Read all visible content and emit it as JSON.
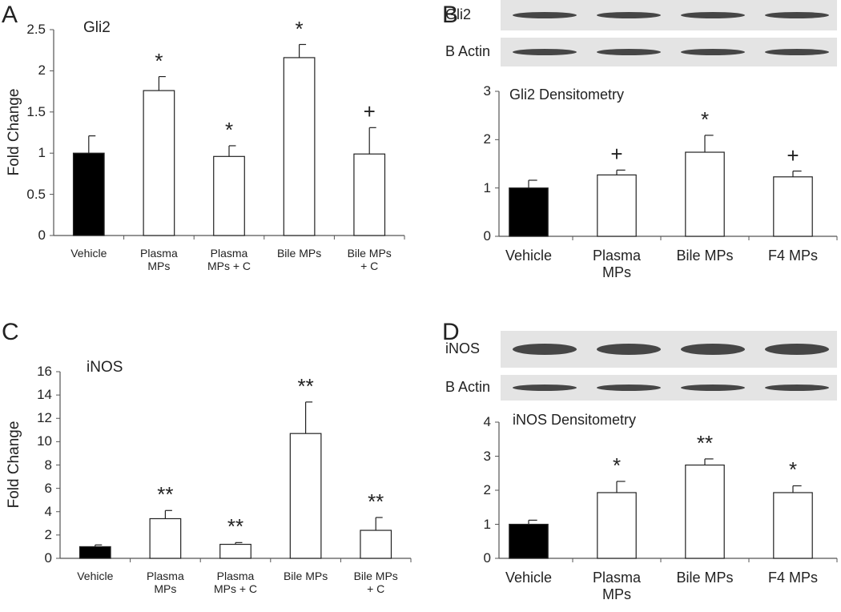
{
  "chart_data": [
    {
      "type": "bar",
      "panel": "A",
      "title": "Gli2",
      "ylabel": "Fold Change",
      "categories": [
        "Vehicle",
        "Plasma\nMPs",
        "Plasma\nMPs + C",
        "Bile MPs",
        "Bile MPs\n+ C"
      ],
      "values": [
        1.0,
        1.76,
        0.96,
        2.16,
        0.99
      ],
      "errors": [
        0.21,
        0.17,
        0.13,
        0.16,
        0.32
      ],
      "annotations": [
        null,
        "*",
        "*",
        "*",
        "+"
      ],
      "colors": [
        "#000000",
        "#ffffff",
        "#ffffff",
        "#ffffff",
        "#ffffff"
      ],
      "ylim": [
        0,
        2.5
      ],
      "yticks": [
        0,
        0.5,
        1,
        1.5,
        2,
        2.5
      ]
    },
    {
      "type": "bar",
      "panel": "B",
      "title": "Gli2 Densitometry",
      "blots": [
        "Gli2",
        "B Actin"
      ],
      "categories": [
        "Vehicle",
        "Plasma\nMPs",
        "Bile MPs",
        "F4 MPs"
      ],
      "values": [
        1.0,
        1.27,
        1.74,
        1.23
      ],
      "errors": [
        0.16,
        0.1,
        0.35,
        0.12
      ],
      "annotations": [
        null,
        "+",
        "*",
        "+"
      ],
      "colors": [
        "#000000",
        "#ffffff",
        "#ffffff",
        "#ffffff"
      ],
      "ylim": [
        0,
        3
      ],
      "yticks": [
        0,
        1,
        2,
        3
      ]
    },
    {
      "type": "bar",
      "panel": "C",
      "title": "iNOS",
      "ylabel": "Fold Change",
      "categories": [
        "Vehicle",
        "Plasma\nMPs",
        "Plasma\nMPs + C",
        "Bile MPs",
        "Bile MPs\n+ C"
      ],
      "values": [
        1.0,
        3.4,
        1.2,
        10.7,
        2.4
      ],
      "errors": [
        0.15,
        0.7,
        0.15,
        2.7,
        1.1
      ],
      "annotations": [
        null,
        "**",
        "**",
        "**",
        "**"
      ],
      "colors": [
        "#000000",
        "#ffffff",
        "#ffffff",
        "#ffffff",
        "#ffffff"
      ],
      "ylim": [
        0,
        16
      ],
      "yticks": [
        0,
        2,
        4,
        6,
        8,
        10,
        12,
        14,
        16
      ]
    },
    {
      "type": "bar",
      "panel": "D",
      "title": "iNOS Densitometry",
      "blots": [
        "iNOS",
        "B Actin"
      ],
      "categories": [
        "Vehicle",
        "Plasma\nMPs",
        "Bile MPs",
        "F4 MPs"
      ],
      "values": [
        1.0,
        1.93,
        2.74,
        1.93
      ],
      "errors": [
        0.12,
        0.33,
        0.18,
        0.2
      ],
      "annotations": [
        null,
        "*",
        "**",
        "*"
      ],
      "colors": [
        "#000000",
        "#ffffff",
        "#ffffff",
        "#ffffff"
      ],
      "ylim": [
        0,
        4
      ],
      "yticks": [
        0,
        1,
        2,
        3,
        4
      ]
    }
  ]
}
